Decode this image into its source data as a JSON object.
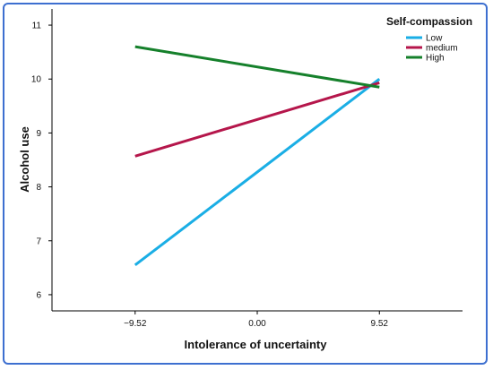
{
  "chart_data": {
    "type": "line",
    "xlabel": "Intolerance of uncertainty",
    "ylabel": "Alcohol use",
    "x": [
      -9.52,
      9.52
    ],
    "x_ticks": [
      "−9.52",
      "0.00",
      "9.52"
    ],
    "x_tick_values": [
      -9.52,
      0,
      9.52
    ],
    "xlim": [
      -16.0,
      16.0
    ],
    "y_ticks": [
      "6",
      "7",
      "8",
      "9",
      "10",
      "11"
    ],
    "y_tick_values": [
      6,
      7,
      8,
      9,
      10,
      11
    ],
    "ylim": [
      5.7,
      11.3
    ],
    "legend_title": "Self-compassion",
    "legend_position": "top-right",
    "grid": false,
    "series": [
      {
        "name": "Low",
        "color": "#1aaee5",
        "values": [
          6.55,
          10.0
        ]
      },
      {
        "name": "medium",
        "color": "#b5164b",
        "values": [
          8.57,
          9.93
        ]
      },
      {
        "name": "High",
        "color": "#15802b",
        "values": [
          10.6,
          9.85
        ]
      }
    ]
  }
}
